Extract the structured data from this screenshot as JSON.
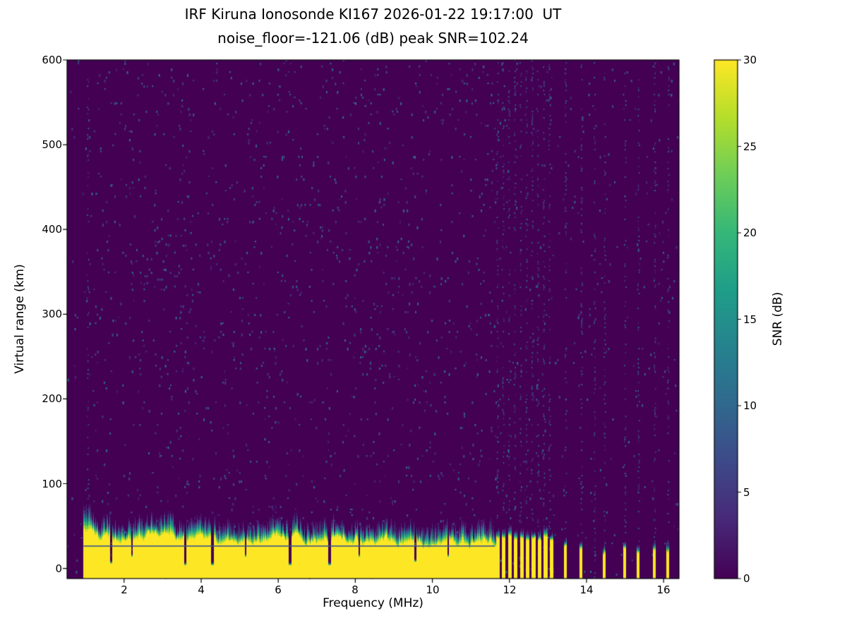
{
  "chart_data": {
    "type": "heatmap",
    "title": "IRF Kiruna Ionosonde KI167 2026-01-22 19:17:00  UT",
    "subtitle": "noise_floor=-121.06 (dB) peak SNR=102.24",
    "xlabel": "Frequency (MHz)",
    "ylabel": "Virtual range (km)",
    "colorbar_label": "SNR (dB)",
    "xlim": [
      0.52,
      16.4
    ],
    "ylim": [
      -12,
      600
    ],
    "clim": [
      0,
      30
    ],
    "x_ticks": [
      2,
      4,
      6,
      8,
      10,
      12,
      14,
      16
    ],
    "x_tick_labels": [
      "2",
      "4",
      "6",
      "8",
      "10",
      "12",
      "14",
      "16"
    ],
    "y_ticks": [
      0,
      100,
      200,
      300,
      400,
      500,
      600
    ],
    "y_tick_labels": [
      "0",
      "100",
      "200",
      "300",
      "400",
      "500",
      "600"
    ],
    "colorbar_ticks": [
      0,
      5,
      10,
      15,
      20,
      25,
      30
    ],
    "colorbar_tick_labels": [
      "0",
      "5",
      "10",
      "15",
      "20",
      "25",
      "30"
    ],
    "colormap": "viridis",
    "colormap_stops": [
      "#440154",
      "#482878",
      "#3e4989",
      "#31688e",
      "#26828e",
      "#1f9e89",
      "#35b779",
      "#6ece58",
      "#b5de2b",
      "#fde725"
    ],
    "background_snr_db": 0,
    "noise": {
      "seed": 20260122,
      "speckle_density": 0.04,
      "speckle_snr_db": [
        2,
        11
      ],
      "patch": {
        "freq": [
          2.2,
          3.6
        ],
        "km": [
          330,
          395
        ],
        "density": 0.1
      }
    },
    "noise_stripe_freqs": [
      1.05,
      11.68,
      11.83,
      11.98,
      12.13,
      12.28,
      12.43,
      12.58,
      12.73,
      12.88,
      13.03,
      13.45,
      13.86,
      14.2,
      14.46,
      14.99,
      15.34,
      15.76,
      16.11
    ],
    "ground_echo": {
      "freq_start": 0.95,
      "freq_end": 11.62,
      "yellow_top_km_start": 38,
      "yellow_top_km_end": 30,
      "fringe_km": 14,
      "inner_dark_line_km": 27,
      "notches": [
        {
          "freq": 1.65,
          "width_mhz": 0.06,
          "depth_km": 6
        },
        {
          "freq": 2.2,
          "width_mhz": 0.04,
          "depth_km": 14
        },
        {
          "freq": 3.58,
          "width_mhz": 0.07,
          "depth_km": 4
        },
        {
          "freq": 4.28,
          "width_mhz": 0.07,
          "depth_km": 4
        },
        {
          "freq": 5.15,
          "width_mhz": 0.04,
          "depth_km": 14
        },
        {
          "freq": 6.3,
          "width_mhz": 0.07,
          "depth_km": 4
        },
        {
          "freq": 7.33,
          "width_mhz": 0.07,
          "depth_km": 4
        },
        {
          "freq": 8.1,
          "width_mhz": 0.04,
          "depth_km": 14
        },
        {
          "freq": 9.55,
          "width_mhz": 0.05,
          "depth_km": 8
        },
        {
          "freq": 10.4,
          "width_mhz": 0.04,
          "depth_km": 14
        }
      ]
    },
    "comb_echo": {
      "freq_start": 11.62,
      "freq_end": 13.12,
      "period_mhz": 0.155,
      "stripe_width_mhz": 0.075,
      "top_km": 36,
      "fringe_km": 8
    },
    "isolated_stripes": [
      {
        "freq": 13.45,
        "width_mhz": 0.07,
        "top_km": 26
      },
      {
        "freq": 13.86,
        "width_mhz": 0.06,
        "top_km": 24
      },
      {
        "freq": 14.46,
        "width_mhz": 0.05,
        "top_km": 18
      },
      {
        "freq": 14.99,
        "width_mhz": 0.06,
        "top_km": 24
      },
      {
        "freq": 15.34,
        "width_mhz": 0.05,
        "top_km": 20
      },
      {
        "freq": 15.76,
        "width_mhz": 0.05,
        "top_km": 22
      },
      {
        "freq": 16.11,
        "width_mhz": 0.05,
        "top_km": 20
      }
    ]
  }
}
